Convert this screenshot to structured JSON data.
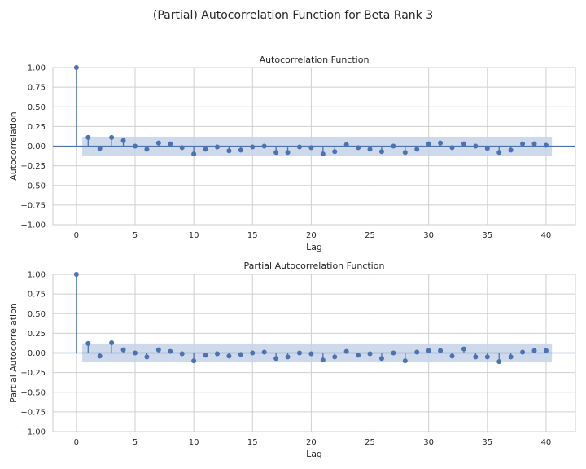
{
  "figure": {
    "title": "(Partial) Autocorrelation Function for Beta Rank 3"
  },
  "colors": {
    "series": "#4c72b0",
    "band": "#c6d2e8",
    "grid": "#cfcfcf",
    "frame": "#cccccc",
    "text": "#262626"
  },
  "chart_data": [
    {
      "type": "stem",
      "title": "Autocorrelation Function",
      "xlabel": "Lag",
      "ylabel": "Autocorrelation",
      "xlim": [
        -2,
        42.5
      ],
      "ylim": [
        -1.0,
        1.0
      ],
      "xticks": [
        0,
        5,
        10,
        15,
        20,
        25,
        30,
        35,
        40
      ],
      "yticks": [
        -1.0,
        -0.75,
        -0.5,
        -0.25,
        0.0,
        0.25,
        0.5,
        0.75,
        1.0
      ],
      "ytick_labels": [
        "−1.00",
        "−0.75",
        "−0.50",
        "−0.25",
        "0.00",
        "0.25",
        "0.50",
        "0.75",
        "1.00"
      ],
      "grid": true,
      "lags": [
        0,
        1,
        2,
        3,
        4,
        5,
        6,
        7,
        8,
        9,
        10,
        11,
        12,
        13,
        14,
        15,
        16,
        17,
        18,
        19,
        20,
        21,
        22,
        23,
        24,
        25,
        26,
        27,
        28,
        29,
        30,
        31,
        32,
        33,
        34,
        35,
        36,
        37,
        38,
        39,
        40
      ],
      "values": [
        1.0,
        0.11,
        -0.03,
        0.11,
        0.07,
        0.0,
        -0.04,
        0.04,
        0.03,
        -0.02,
        -0.1,
        -0.04,
        -0.01,
        -0.06,
        -0.05,
        -0.01,
        0.0,
        -0.08,
        -0.08,
        -0.01,
        -0.02,
        -0.1,
        -0.07,
        0.02,
        -0.02,
        -0.04,
        -0.07,
        0.0,
        -0.08,
        -0.04,
        0.03,
        0.04,
        -0.02,
        0.03,
        0.0,
        -0.03,
        -0.08,
        -0.05,
        0.03,
        0.03,
        0.01
      ],
      "confidence_band": {
        "lags": [
          0.5,
          40.5
        ],
        "half_width": 0.12
      }
    },
    {
      "type": "stem",
      "title": "Partial Autocorrelation Function",
      "xlabel": "Lag",
      "ylabel": "Partial Autocorrelation",
      "xlim": [
        -2,
        42.5
      ],
      "ylim": [
        -1.0,
        1.0
      ],
      "xticks": [
        0,
        5,
        10,
        15,
        20,
        25,
        30,
        35,
        40
      ],
      "yticks": [
        -1.0,
        -0.75,
        -0.5,
        -0.25,
        0.0,
        0.25,
        0.5,
        0.75,
        1.0
      ],
      "ytick_labels": [
        "−1.00",
        "−0.75",
        "−0.50",
        "−0.25",
        "0.00",
        "0.25",
        "0.50",
        "0.75",
        "1.00"
      ],
      "grid": true,
      "lags": [
        0,
        1,
        2,
        3,
        4,
        5,
        6,
        7,
        8,
        9,
        10,
        11,
        12,
        13,
        14,
        15,
        16,
        17,
        18,
        19,
        20,
        21,
        22,
        23,
        24,
        25,
        26,
        27,
        28,
        29,
        30,
        31,
        32,
        33,
        34,
        35,
        36,
        37,
        38,
        39,
        40
      ],
      "values": [
        1.0,
        0.12,
        -0.04,
        0.13,
        0.04,
        0.0,
        -0.05,
        0.04,
        0.02,
        -0.01,
        -0.1,
        -0.03,
        -0.01,
        -0.04,
        -0.02,
        0.0,
        0.01,
        -0.07,
        -0.05,
        0.0,
        -0.01,
        -0.09,
        -0.05,
        0.02,
        -0.03,
        -0.01,
        -0.07,
        0.0,
        -0.1,
        0.01,
        0.03,
        0.03,
        -0.04,
        0.05,
        -0.05,
        -0.05,
        -0.11,
        -0.05,
        0.01,
        0.03,
        0.03
      ],
      "confidence_band": {
        "lags": [
          0.5,
          40.5
        ],
        "half_width": 0.12
      }
    }
  ]
}
